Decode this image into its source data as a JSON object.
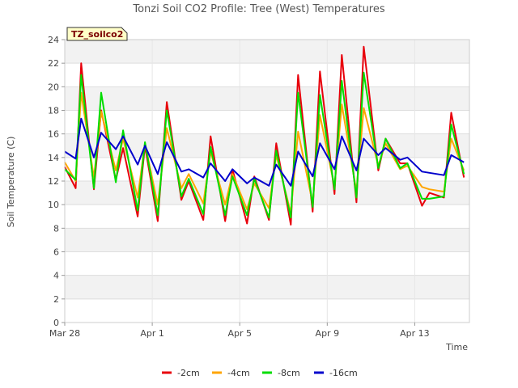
{
  "chart_data": {
    "type": "line",
    "title": "Tonzi Soil CO2 Profile: Tree (West) Temperatures",
    "xlabel": "Time",
    "ylabel": "Soil Temperature (C)",
    "badge": "TZ_soilco2",
    "ylim": [
      0,
      24
    ],
    "yticks": [
      0,
      2,
      4,
      6,
      8,
      10,
      12,
      14,
      16,
      18,
      20,
      22,
      24
    ],
    "xlim": [
      "2024-03-28",
      "2024-04-15 12:00"
    ],
    "xticks": [
      {
        "label": "Mar 28",
        "date": "2024-03-28"
      },
      {
        "label": "Apr 1",
        "date": "2024-04-01"
      },
      {
        "label": "Apr 5",
        "date": "2024-04-05"
      },
      {
        "label": "Apr 9",
        "date": "2024-04-09"
      },
      {
        "label": "Apr 13",
        "date": "2024-04-13"
      }
    ],
    "grid": true,
    "legend_position": "bottom",
    "x": [
      "2024-03-28 00:00",
      "2024-03-28 12:00",
      "2024-03-28 18:00",
      "2024-03-29 08:00",
      "2024-03-29 16:00",
      "2024-03-30 08:00",
      "2024-03-30 16:00",
      "2024-03-31 08:00",
      "2024-03-31 16:00",
      "2024-04-01 06:00",
      "2024-04-01 16:00",
      "2024-04-02 08:00",
      "2024-04-02 16:00",
      "2024-04-03 08:00",
      "2024-04-03 16:00",
      "2024-04-04 08:00",
      "2024-04-04 16:00",
      "2024-04-05 08:00",
      "2024-04-05 16:00",
      "2024-04-06 08:00",
      "2024-04-06 16:00",
      "2024-04-07 08:00",
      "2024-04-07 16:00",
      "2024-04-08 08:00",
      "2024-04-08 16:00",
      "2024-04-09 08:00",
      "2024-04-09 16:00",
      "2024-04-10 08:00",
      "2024-04-10 16:00",
      "2024-04-11 08:00",
      "2024-04-11 16:00",
      "2024-04-12 08:00",
      "2024-04-12 16:00",
      "2024-04-13 08:00",
      "2024-04-13 16:00",
      "2024-04-14 08:00",
      "2024-04-14 16:00",
      "2024-04-15 06:00"
    ],
    "series": [
      {
        "name": "-2cm",
        "color": "#e8000b",
        "values": [
          13.2,
          11.4,
          22.0,
          11.3,
          18.0,
          12.1,
          14.8,
          9.0,
          15.0,
          8.6,
          18.7,
          10.4,
          12.0,
          8.7,
          15.8,
          8.6,
          13.0,
          8.4,
          12.4,
          8.7,
          15.2,
          8.3,
          21.0,
          9.4,
          21.3,
          10.9,
          22.7,
          10.2,
          23.4,
          12.9,
          15.6,
          13.5,
          13.5,
          9.9,
          11.0,
          10.6,
          17.8,
          12.3
        ]
      },
      {
        "name": "-4cm",
        "color": "#ffa500",
        "values": [
          13.6,
          12.0,
          19.5,
          12.3,
          17.9,
          12.9,
          15.6,
          10.6,
          15.2,
          10.0,
          16.5,
          11.4,
          12.6,
          10.1,
          14.5,
          10.0,
          12.6,
          9.6,
          11.8,
          9.7,
          14.2,
          9.3,
          16.2,
          10.1,
          17.6,
          11.5,
          18.5,
          11.1,
          18.2,
          13.3,
          15.2,
          13.0,
          13.3,
          11.5,
          11.3,
          11.1,
          15.6,
          12.9
        ]
      },
      {
        "name": "-8cm",
        "color": "#00dd00",
        "values": [
          13.0,
          12.1,
          21.0,
          11.4,
          19.5,
          11.9,
          16.3,
          9.5,
          15.3,
          9.1,
          18.0,
          10.7,
          12.2,
          9.2,
          14.9,
          9.1,
          12.4,
          9.1,
          12.2,
          8.9,
          14.6,
          8.9,
          19.5,
          9.8,
          19.3,
          11.3,
          20.5,
          10.6,
          21.2,
          13.1,
          15.6,
          13.1,
          13.5,
          10.5,
          10.5,
          10.7,
          16.8,
          12.6
        ]
      },
      {
        "name": "-16cm",
        "color": "#0000cc",
        "values": [
          14.5,
          13.9,
          17.3,
          14.0,
          16.1,
          14.7,
          15.8,
          13.4,
          15.0,
          12.6,
          15.3,
          12.8,
          13.0,
          12.3,
          13.5,
          12.0,
          13.0,
          11.8,
          12.3,
          11.6,
          13.4,
          11.6,
          14.5,
          12.4,
          15.2,
          13.0,
          15.8,
          12.9,
          15.6,
          14.2,
          14.8,
          13.8,
          14.0,
          12.8,
          12.7,
          12.5,
          14.2,
          13.6
        ]
      }
    ]
  }
}
